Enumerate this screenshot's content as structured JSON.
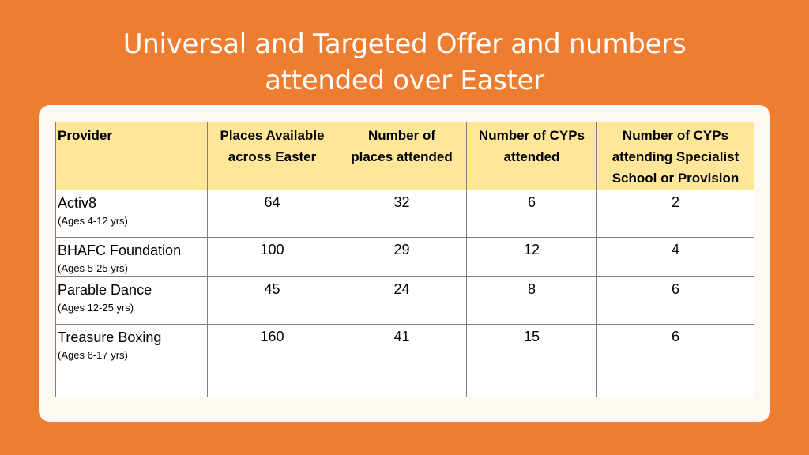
{
  "slide": {
    "title_line1": "Universal and Targeted Offer and numbers",
    "title_line2": "attended over Easter"
  },
  "table": {
    "headers": [
      [
        "Provider"
      ],
      [
        "Places Available",
        "across Easter"
      ],
      [
        "Number of",
        "places attended"
      ],
      [
        "Number of CYPs",
        "attended"
      ],
      [
        "Number of CYPs",
        "attending Specialist",
        "School or Provision"
      ]
    ],
    "rows": [
      {
        "provider": "Activ8",
        "ages": "(Ages 4-12 yrs)",
        "places_available": "64",
        "places_attended": "32",
        "cyps_attended": "6",
        "cyps_specialist": "2"
      },
      {
        "provider": "BHAFC Foundation",
        "ages": "(Ages 5-25 yrs)",
        "places_available": "100",
        "places_attended": "29",
        "cyps_attended": "12",
        "cyps_specialist": "4"
      },
      {
        "provider": "Parable Dance",
        "ages": "(Ages 12-25 yrs)",
        "places_available": "45",
        "places_attended": "24",
        "cyps_attended": "8",
        "cyps_specialist": "6"
      },
      {
        "provider": "Treasure Boxing",
        "ages": "(Ages 6-17 yrs)",
        "places_available": "160",
        "places_attended": "41",
        "cyps_attended": "15",
        "cyps_specialist": "6"
      }
    ]
  },
  "colors": {
    "background": "#ED7D31",
    "panel": "#FDF8F2",
    "header_fill": "#FFE699"
  }
}
